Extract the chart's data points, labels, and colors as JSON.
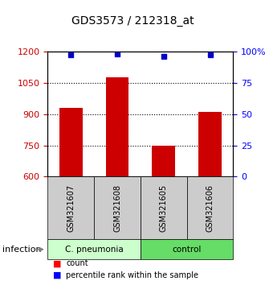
{
  "title": "GDS3573 / 212318_at",
  "samples": [
    "GSM321607",
    "GSM321608",
    "GSM321605",
    "GSM321606"
  ],
  "counts": [
    930,
    1075,
    750,
    910
  ],
  "percentiles": [
    97,
    98,
    96,
    97
  ],
  "ylim_left": [
    600,
    1200
  ],
  "ylim_right": [
    0,
    100
  ],
  "yticks_left": [
    600,
    750,
    900,
    1050,
    1200
  ],
  "yticks_right": [
    0,
    25,
    50,
    75,
    100
  ],
  "ytick_labels_right": [
    "0",
    "25",
    "50",
    "75",
    "100%"
  ],
  "groups": [
    {
      "label": "C. pneumonia",
      "color": "#ccffcc",
      "samples": [
        0,
        1
      ]
    },
    {
      "label": "control",
      "color": "#66dd66",
      "samples": [
        2,
        3
      ]
    }
  ],
  "bar_color": "#cc0000",
  "dot_color": "#0000cc",
  "background_color": "#ffffff",
  "sample_box_color": "#cccccc",
  "infection_label": "infection",
  "legend_count_label": "count",
  "legend_pct_label": "percentile rank within the sample"
}
